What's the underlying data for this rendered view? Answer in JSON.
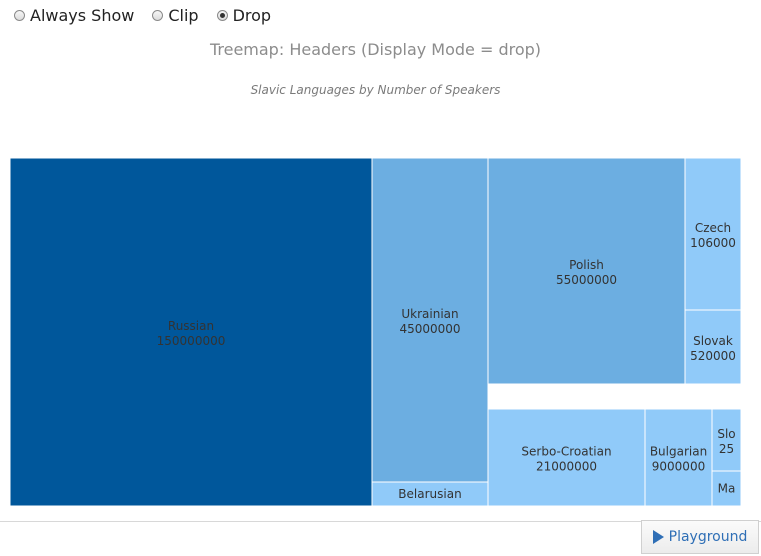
{
  "controls": {
    "options": [
      {
        "label": "Always Show",
        "checked": false
      },
      {
        "label": "Clip",
        "checked": false
      },
      {
        "label": "Drop",
        "checked": true
      }
    ]
  },
  "chart_data": {
    "type": "treemap",
    "title": "Treemap: Headers (Display Mode = drop)",
    "subtitle": "Slavic Languages by Number of Speakers",
    "colors": {
      "top": "#00579b",
      "mid": "#6caee1",
      "light": "#90caf9",
      "border": "#ffffff",
      "label": "#333333"
    },
    "nodes": [
      {
        "label": "Russian",
        "value": "150000000",
        "show_value": true
      },
      {
        "label": "Ukrainian",
        "value": "45000000",
        "show_value": true
      },
      {
        "label": "Belarusian",
        "value": "",
        "show_value": false
      },
      {
        "label": "Polish",
        "value": "55000000",
        "show_value": true
      },
      {
        "label": "Czech",
        "value": "106000",
        "show_value": true
      },
      {
        "label": "Slovak",
        "value": "520000",
        "show_value": true
      },
      {
        "label": "Serbo-Croatian",
        "value": "21000000",
        "show_value": true
      },
      {
        "label": "Bulgarian",
        "value": "9000000",
        "show_value": true
      },
      {
        "label": "Slo",
        "value": "25",
        "show_value": true
      },
      {
        "label": "Ma",
        "value": "",
        "show_value": false
      }
    ]
  },
  "footer": {
    "playground_label": "Playground"
  }
}
